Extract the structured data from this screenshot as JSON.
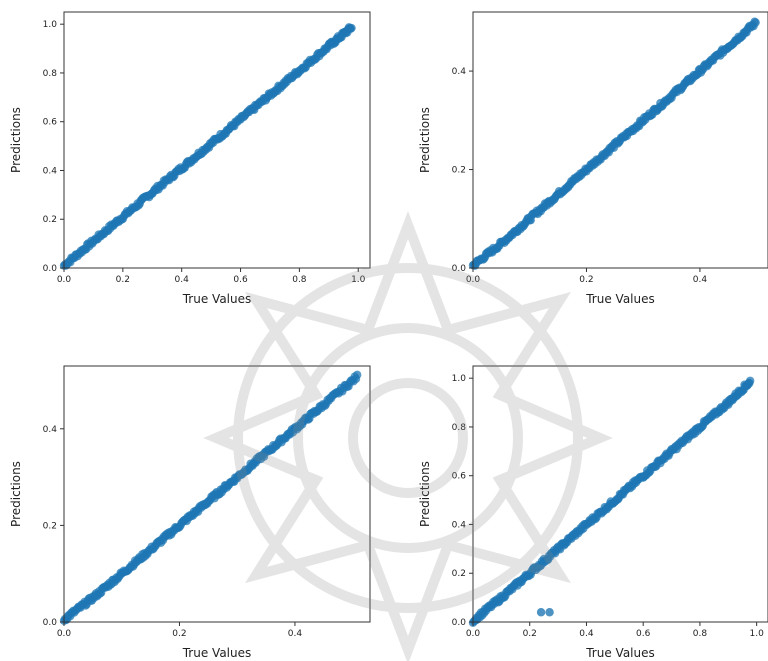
{
  "chart_data": [
    {
      "type": "scatter",
      "xlabel": "True Values",
      "ylabel": "Predictions",
      "xlim": [
        0.0,
        1.04
      ],
      "ylim": [
        0.0,
        1.05
      ],
      "xticks": [
        "0.0",
        "0.2",
        "0.4",
        "0.6",
        "0.8",
        "1.0"
      ],
      "yticks": [
        "0.0",
        "0.2",
        "0.4",
        "0.6",
        "0.8",
        "1.0"
      ],
      "x_tick_values": [
        0.0,
        0.2,
        0.4,
        0.6,
        0.8,
        1.0
      ],
      "y_tick_values": [
        0.0,
        0.2,
        0.4,
        0.6,
        0.8,
        1.0
      ],
      "color": "#1f77b4",
      "trend": {
        "x": [
          0.0,
          0.1,
          0.2,
          0.3,
          0.4,
          0.5,
          0.6,
          0.7,
          0.8,
          0.9,
          0.98
        ],
        "y": [
          0.01,
          0.11,
          0.21,
          0.31,
          0.41,
          0.51,
          0.61,
          0.71,
          0.81,
          0.91,
          0.99
        ]
      },
      "outliers": []
    },
    {
      "type": "scatter",
      "xlabel": "True Values",
      "ylabel": "Predictions",
      "xlim": [
        0.0,
        0.52
      ],
      "ylim": [
        0.0,
        0.52
      ],
      "xticks": [
        "0.0",
        "0.2",
        "0.4"
      ],
      "yticks": [
        "0.0",
        "0.2",
        "0.4"
      ],
      "x_tick_values": [
        0.0,
        0.2,
        0.4
      ],
      "y_tick_values": [
        0.0,
        0.2,
        0.4
      ],
      "color": "#1f77b4",
      "trend": {
        "x": [
          0.0,
          0.05,
          0.1,
          0.15,
          0.2,
          0.25,
          0.3,
          0.35,
          0.4,
          0.45,
          0.5
        ],
        "y": [
          0.005,
          0.05,
          0.1,
          0.15,
          0.2,
          0.25,
          0.3,
          0.35,
          0.4,
          0.45,
          0.5
        ]
      },
      "outliers": []
    },
    {
      "type": "scatter",
      "xlabel": "True Values",
      "ylabel": "Predictions",
      "xlim": [
        0.0,
        0.53
      ],
      "ylim": [
        0.0,
        0.53
      ],
      "xticks": [
        "0.0",
        "0.2",
        "0.4"
      ],
      "yticks": [
        "0.0",
        "0.2",
        "0.4"
      ],
      "x_tick_values": [
        0.0,
        0.2,
        0.4
      ],
      "y_tick_values": [
        0.0,
        0.2,
        0.4
      ],
      "color": "#1f77b4",
      "trend": {
        "x": [
          0.0,
          0.05,
          0.1,
          0.15,
          0.2,
          0.25,
          0.3,
          0.35,
          0.4,
          0.45,
          0.51
        ],
        "y": [
          0.005,
          0.05,
          0.1,
          0.15,
          0.2,
          0.25,
          0.3,
          0.35,
          0.4,
          0.45,
          0.51
        ]
      },
      "outliers": []
    },
    {
      "type": "scatter",
      "xlabel": "True Values",
      "ylabel": "Predictions",
      "xlim": [
        0.0,
        1.04
      ],
      "ylim": [
        0.0,
        1.05
      ],
      "xticks": [
        "0.0",
        "0.2",
        "0.4",
        "0.6",
        "0.8",
        "1.0"
      ],
      "yticks": [
        "0.0",
        "0.2",
        "0.4",
        "0.6",
        "0.8",
        "1.0"
      ],
      "x_tick_values": [
        0.0,
        0.2,
        0.4,
        0.6,
        0.8,
        1.0
      ],
      "y_tick_values": [
        0.0,
        0.2,
        0.4,
        0.6,
        0.8,
        1.0
      ],
      "color": "#1f77b4",
      "trend": {
        "x": [
          0.0,
          0.1,
          0.2,
          0.3,
          0.4,
          0.5,
          0.6,
          0.7,
          0.8,
          0.9,
          0.98
        ],
        "y": [
          0.005,
          0.1,
          0.2,
          0.3,
          0.4,
          0.5,
          0.6,
          0.7,
          0.8,
          0.9,
          0.99
        ]
      },
      "outliers": [
        {
          "x": 0.24,
          "y": 0.04
        },
        {
          "x": 0.27,
          "y": 0.04
        }
      ]
    }
  ]
}
